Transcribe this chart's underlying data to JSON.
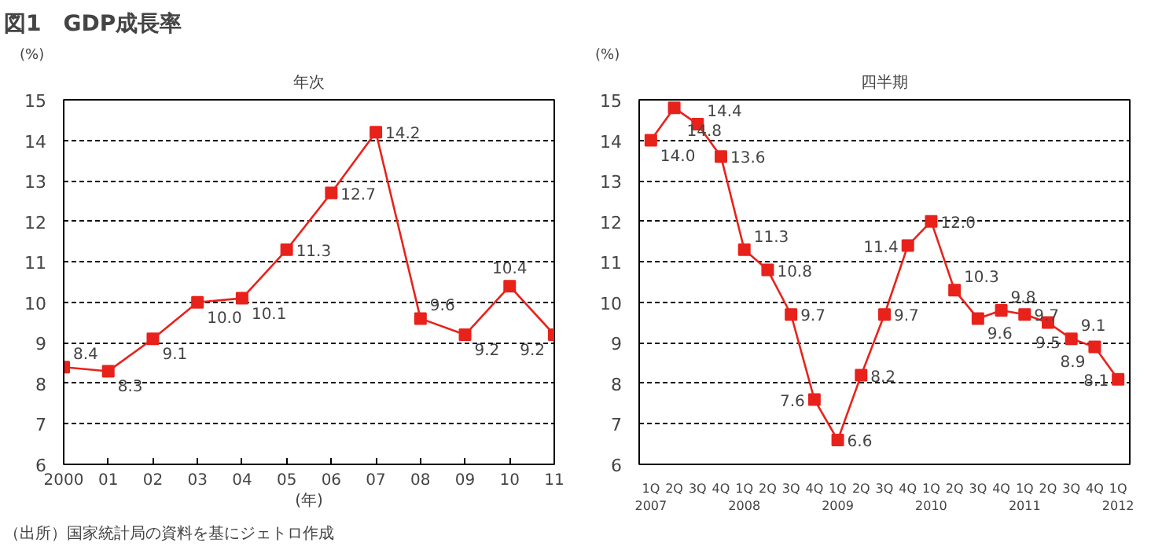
{
  "chart_data": [
    {
      "type": "line",
      "title": "図1　GDP成長率",
      "subtitle": "年次",
      "ylabel": "(%)",
      "xlabel": "(年)",
      "x": [
        2000,
        2001,
        2002,
        2003,
        2004,
        2005,
        2006,
        2007,
        2008,
        2009,
        2010,
        2011
      ],
      "series": [
        {
          "color": "#e8221b",
          "values": [
            8.4,
            8.3,
            9.1,
            10.0,
            10.1,
            11.3,
            12.7,
            14.2,
            9.6,
            9.2,
            10.4,
            9.2
          ],
          "value_labels": [
            "8.4",
            "8.3",
            "9.1",
            "10.0",
            "10.1",
            "11.3",
            "12.7",
            "14.2",
            "9.6",
            "9.2",
            "10.4",
            "9.2"
          ]
        }
      ],
      "xlim": [
        2000,
        2011
      ],
      "xticks": [
        {
          "value": 2000,
          "label": "2000"
        },
        {
          "value": 2001,
          "label": "01"
        },
        {
          "value": 2002,
          "label": "02"
        },
        {
          "value": 2003,
          "label": "03"
        },
        {
          "value": 2004,
          "label": "04"
        },
        {
          "value": 2005,
          "label": "05"
        },
        {
          "value": 2006,
          "label": "06"
        },
        {
          "value": 2007,
          "label": "07"
        },
        {
          "value": 2008,
          "label": "08"
        },
        {
          "value": 2009,
          "label": "09"
        },
        {
          "value": 2010,
          "label": "10"
        },
        {
          "value": 2011,
          "label": "11"
        }
      ],
      "ylim": [
        6,
        15
      ],
      "yticks": [
        6,
        7,
        8,
        9,
        10,
        11,
        12,
        13,
        14,
        15
      ],
      "grid": "y",
      "marker": "square",
      "line_style": "solid",
      "annotations": [
        "（出所）国家統計局の資料を基にジェトロ作成"
      ]
    },
    {
      "type": "line",
      "subtitle": "四半期",
      "ylabel": "(%)",
      "categories": [
        "1Q\n2007",
        "2Q",
        "3Q",
        "4Q",
        "1Q\n2008",
        "2Q",
        "3Q",
        "4Q",
        "1Q\n2009",
        "2Q",
        "3Q",
        "4Q",
        "1Q\n2010",
        "2Q",
        "3Q",
        "4Q",
        "1Q\n2011",
        "2Q",
        "3Q",
        "4Q",
        "1Q\n2012"
      ],
      "series": [
        {
          "color": "#e8221b",
          "values": [
            14.0,
            14.8,
            14.4,
            13.6,
            11.3,
            10.8,
            9.7,
            7.6,
            6.6,
            8.2,
            9.7,
            11.4,
            12.0,
            10.3,
            9.6,
            9.8,
            9.7,
            9.5,
            9.1,
            8.9,
            8.1
          ],
          "value_labels": [
            "14.0",
            "14.8",
            "14.4",
            "13.6",
            "11.3",
            "10.8",
            "9.7",
            "7.6",
            "6.6",
            "8.2",
            "9.7",
            "11.4",
            "12.0",
            "10.3",
            "9.6",
            "9.8",
            "9.7",
            "9.5",
            "9.1",
            "8.9",
            "8.1"
          ]
        }
      ],
      "ylim": [
        6,
        15
      ],
      "yticks": [
        6,
        7,
        8,
        9,
        10,
        11,
        12,
        13,
        14,
        15
      ],
      "grid": "y",
      "marker": "square",
      "line_style": "solid"
    }
  ]
}
